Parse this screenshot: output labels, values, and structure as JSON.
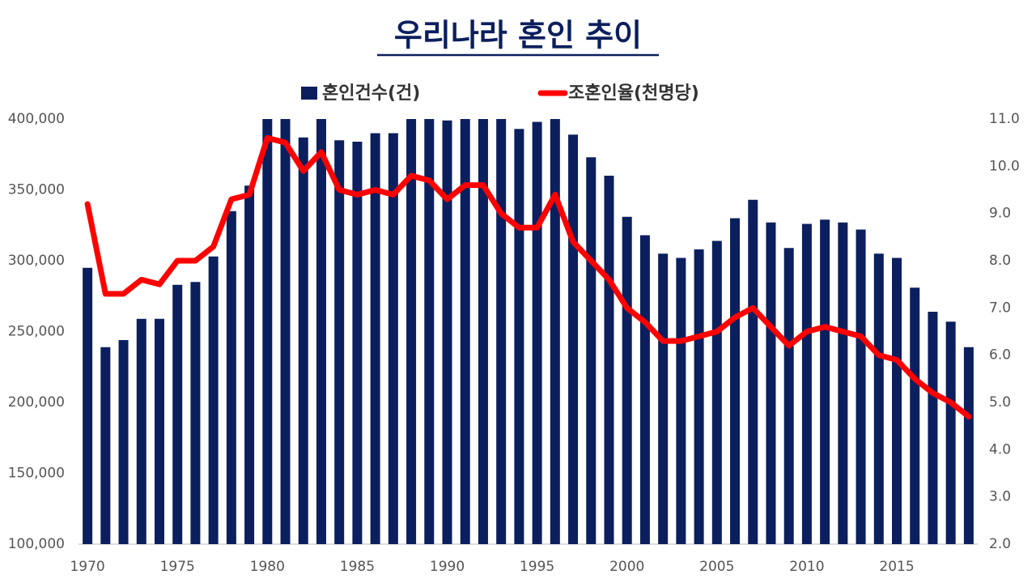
{
  "chart_data": {
    "type": "bar-line",
    "title": "우리나라 혼인 추이",
    "categories": [
      "1970",
      null,
      null,
      null,
      null,
      "1975",
      null,
      null,
      null,
      null,
      "1980",
      null,
      null,
      null,
      null,
      "1985",
      null,
      null,
      null,
      null,
      "1990",
      null,
      null,
      null,
      null,
      "1995",
      null,
      null,
      null,
      null,
      "2000",
      null,
      null,
      null,
      null,
      "2005",
      null,
      null,
      null,
      null,
      "2010",
      null,
      null,
      null,
      null,
      "2015",
      null,
      null,
      null,
      null
    ],
    "series": [
      {
        "name": "혼인건수(건)",
        "type": "bar",
        "color": "#0b1f5e",
        "values": [
          295000,
          239000,
          244000,
          259000,
          259000,
          283000,
          285000,
          303000,
          335000,
          353000,
          400000,
          400000,
          387000,
          400000,
          385000,
          384000,
          390000,
          390000,
          400000,
          400000,
          399000,
          400000,
          400000,
          400000,
          393000,
          398000,
          400000,
          389000,
          373000,
          360000,
          331000,
          318000,
          305000,
          302000,
          308000,
          314000,
          330000,
          343000,
          327000,
          309000,
          326000,
          329000,
          327000,
          322000,
          305000,
          302000,
          281000,
          264000,
          257000,
          239000
        ]
      },
      {
        "name": "조혼인율(천명당)",
        "type": "line",
        "axis": "y2",
        "color": "#ff0000",
        "values": [
          9.2,
          7.3,
          7.3,
          7.6,
          7.5,
          8.0,
          8.0,
          8.3,
          9.3,
          9.4,
          10.6,
          10.5,
          9.9,
          10.3,
          9.5,
          9.4,
          9.5,
          9.4,
          9.8,
          9.7,
          9.3,
          9.6,
          9.6,
          9.0,
          8.7,
          8.7,
          9.4,
          8.4,
          8.0,
          7.6,
          7.0,
          6.7,
          6.3,
          6.3,
          6.4,
          6.5,
          6.8,
          7.0,
          6.6,
          6.2,
          6.5,
          6.6,
          6.5,
          6.4,
          6.0,
          5.9,
          5.5,
          5.2,
          5.0,
          4.7
        ]
      }
    ],
    "ylim": [
      100000,
      400000
    ],
    "yticks": [
      {
        "value": 100000,
        "label": "100,000"
      },
      {
        "value": 150000,
        "label": "150,000"
      },
      {
        "value": 200000,
        "label": "200,000"
      },
      {
        "value": 250000,
        "label": "250,000"
      },
      {
        "value": 300000,
        "label": "300,000"
      },
      {
        "value": 350000,
        "label": "350,000"
      },
      {
        "value": 400000,
        "label": "400,000"
      }
    ],
    "y2lim": [
      2,
      11
    ],
    "y2ticks": [
      {
        "value": 2,
        "label": "2.0"
      },
      {
        "value": 3,
        "label": "3.0"
      },
      {
        "value": 4,
        "label": "4.0"
      },
      {
        "value": 5,
        "label": "5.0"
      },
      {
        "value": 6,
        "label": "6.0"
      },
      {
        "value": 7,
        "label": "7.0"
      },
      {
        "value": 8,
        "label": "8.0"
      },
      {
        "value": 9,
        "label": "9.0"
      },
      {
        "value": 10,
        "label": "10.0"
      },
      {
        "value": 11,
        "label": "11.0"
      }
    ],
    "grid": false,
    "legend": "top"
  }
}
